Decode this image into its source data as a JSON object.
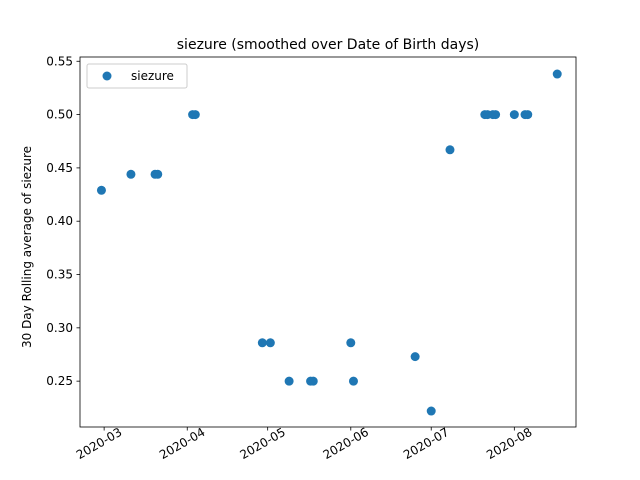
{
  "chart_data": {
    "type": "scatter",
    "title": "siezure (smoothed over Date of Birth days)",
    "xlabel": "",
    "ylabel": "30 Day Rolling average of siezure",
    "x_axis_type": "date",
    "xlim": [
      "2020-02-21",
      "2020-08-24"
    ],
    "ylim": [
      0.207,
      0.554
    ],
    "x_ticks": [
      "2020-03-01",
      "2020-04-01",
      "2020-05-01",
      "2020-06-01",
      "2020-07-01",
      "2020-08-01"
    ],
    "x_tick_labels": [
      "2020-03",
      "2020-04",
      "2020-05",
      "2020-06",
      "2020-07",
      "2020-08"
    ],
    "y_ticks": [
      0.25,
      0.3,
      0.35,
      0.4,
      0.45,
      0.5,
      0.55
    ],
    "y_tick_labels": [
      "0.25",
      "0.30",
      "0.35",
      "0.40",
      "0.45",
      "0.50",
      "0.55"
    ],
    "x_tick_label_rotation_deg": 30,
    "grid": false,
    "legend": {
      "position": "upper-left",
      "entries": [
        "siezure"
      ]
    },
    "series": [
      {
        "name": "siezure",
        "color": "#1f77b4",
        "marker": "circle",
        "points": [
          {
            "x": "2020-02-29",
            "y": 0.429
          },
          {
            "x": "2020-03-11",
            "y": 0.444
          },
          {
            "x": "2020-03-20",
            "y": 0.444
          },
          {
            "x": "2020-03-21",
            "y": 0.444
          },
          {
            "x": "2020-04-03",
            "y": 0.5
          },
          {
            "x": "2020-04-04",
            "y": 0.5
          },
          {
            "x": "2020-04-29",
            "y": 0.286
          },
          {
            "x": "2020-05-02",
            "y": 0.286
          },
          {
            "x": "2020-05-09",
            "y": 0.25
          },
          {
            "x": "2020-05-17",
            "y": 0.25
          },
          {
            "x": "2020-05-18",
            "y": 0.25
          },
          {
            "x": "2020-06-01",
            "y": 0.286
          },
          {
            "x": "2020-06-02",
            "y": 0.25
          },
          {
            "x": "2020-06-25",
            "y": 0.273
          },
          {
            "x": "2020-07-01",
            "y": 0.222
          },
          {
            "x": "2020-07-08",
            "y": 0.467
          },
          {
            "x": "2020-07-21",
            "y": 0.5
          },
          {
            "x": "2020-07-22",
            "y": 0.5
          },
          {
            "x": "2020-07-24",
            "y": 0.5
          },
          {
            "x": "2020-07-25",
            "y": 0.5
          },
          {
            "x": "2020-08-01",
            "y": 0.5
          },
          {
            "x": "2020-08-05",
            "y": 0.5
          },
          {
            "x": "2020-08-06",
            "y": 0.5
          },
          {
            "x": "2020-08-17",
            "y": 0.538
          }
        ]
      }
    ]
  }
}
